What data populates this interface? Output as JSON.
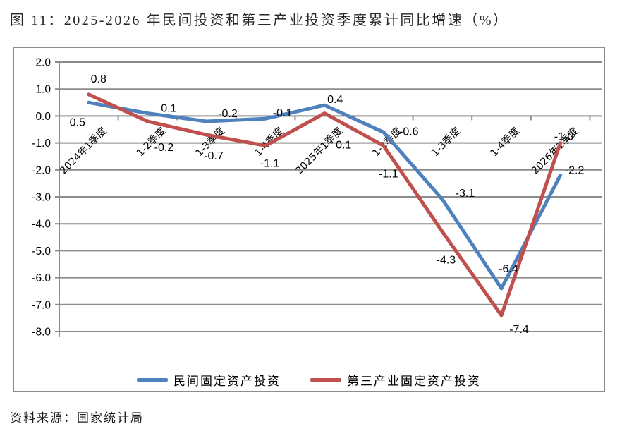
{
  "title": "图 11：2025-2026 年民间投资和第三产业投资季度累计同比增速（%）",
  "source": "资料来源：国家统计局",
  "colors": {
    "series_blue": "#4F81BD",
    "series_red": "#C0504D",
    "grid": "#8c8c8c",
    "frame": "#8c8c8c",
    "label_text": "#000000",
    "title_text": "#262626"
  },
  "chart_data": {
    "type": "line",
    "title": "图 11：2025-2026 年民间投资和第三产业投资季度累计同比增速（%）",
    "categories": [
      "2024年1季度",
      "1-2季度",
      "1-3季度",
      "1-4季度",
      "2025年1季度",
      "1-2季度",
      "1-3季度",
      "1-4季度",
      "2026年1季度"
    ],
    "series": [
      {
        "name": "民间固定资产投资",
        "color": "#4F81BD",
        "values": [
          0.5,
          0.1,
          -0.2,
          -0.1,
          0.4,
          -0.6,
          -3.1,
          -6.4,
          -2.2
        ]
      },
      {
        "name": "第三产业固定资产投资",
        "color": "#C0504D",
        "values": [
          0.8,
          -0.2,
          -0.7,
          -1.1,
          0.1,
          -1.1,
          -4.3,
          -7.4,
          -1.0
        ]
      }
    ],
    "ylim": [
      -8.0,
      2.0
    ],
    "ytick_labels": [
      "2.0",
      "1.0",
      "0.0",
      "-1.0",
      "-2.0",
      "-3.0",
      "-4.0",
      "-5.0",
      "-6.0",
      "-7.0",
      "-8.0"
    ],
    "xlabel": "",
    "ylabel": "",
    "grid": true,
    "data_labels": true,
    "legend_position": "bottom"
  }
}
